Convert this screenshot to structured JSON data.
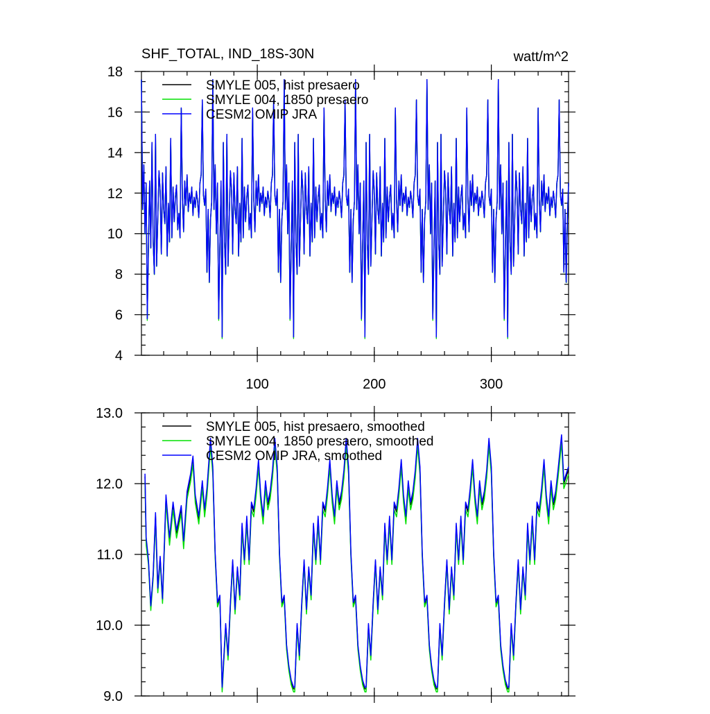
{
  "colors": {
    "hist": "#000000",
    "pre1850": "#00e000",
    "omip": "#0000ff"
  },
  "chart_data": [
    {
      "id": "top",
      "type": "line",
      "title": "SHF_TOTAL, IND_18S-30N",
      "units": "watt/m^2",
      "xlim": [
        1,
        366
      ],
      "ylim": [
        4,
        18
      ],
      "yticks": [
        4,
        6,
        8,
        10,
        12,
        14,
        16,
        18
      ],
      "yminor_step": 0.5,
      "xticks": [
        100,
        200,
        300
      ],
      "xminor_step": 20,
      "x_tick_labels_shown": true,
      "legend": [
        "SMYLE 005, hist presaero",
        "SMYLE 004, 1850 presaero",
        "CESM2 OMIP JRA"
      ],
      "series_names": [
        "SMYLE 005, hist presaero",
        "SMYLE 004, 1850 presaero",
        "CESM2 OMIP JRA"
      ],
      "base_pattern_period": 61,
      "base_pattern": [
        17.6,
        11.2,
        13.4,
        10.0,
        12.5,
        5.8,
        9.4,
        12.6,
        9.3,
        14.5,
        9.6,
        8.0,
        14.9,
        8.4,
        10.8,
        13.1,
        12.1,
        9.0,
        13.0,
        11.2,
        10.5,
        13.3,
        8.9,
        11.5,
        9.6,
        14.7,
        9.8,
        12.3,
        10.6,
        11.8,
        12.4,
        10.2,
        11.0,
        9.8,
        16.2,
        11.7,
        10.1,
        12.6,
        11.4,
        12.9,
        11.1,
        12.0,
        11.5,
        12.3,
        10.9,
        11.8,
        11.3,
        12.1,
        11.6,
        10.8,
        12.5,
        12.9,
        16.6,
        11.9,
        11.4,
        12.2,
        8.1,
        11.2,
        7.6,
        10.7,
        11.6
      ],
      "dips": [
        {
          "x": 70,
          "y": 4.9
        },
        {
          "x": 131,
          "y": 4.9
        },
        {
          "x": 192,
          "y": 4.9
        },
        {
          "x": 253,
          "y": 4.9
        },
        {
          "x": 314,
          "y": 4.9
        }
      ],
      "tail": {
        "x": 366,
        "y": 12.5
      }
    },
    {
      "id": "bottom",
      "type": "line",
      "title": "",
      "units": "",
      "xlim": [
        1,
        366
      ],
      "ylim": [
        9.0,
        13.0
      ],
      "yticks": [
        9.0,
        10.0,
        11.0,
        12.0,
        13.0
      ],
      "yminor_step": 0.2,
      "xticks": [
        100,
        200,
        300
      ],
      "xminor_step": 20,
      "x_tick_labels_shown": false,
      "legend": [
        "SMYLE 005, hist presaero, smoothed",
        "SMYLE 004, 1850 presaero, smoothed",
        "CESM2 OMIP JRA, smoothed"
      ],
      "series_names": [
        "SMYLE 005, hist presaero, smoothed",
        "SMYLE 004, 1850 presaero, smoothed",
        "CESM2 OMIP JRA, smoothed"
      ],
      "key_points": [
        {
          "x": 4,
          "y": 12.1
        },
        {
          "x": 5,
          "y": 11.2
        },
        {
          "x": 7,
          "y": 10.9
        },
        {
          "x": 9,
          "y": 10.25
        },
        {
          "x": 11,
          "y": 10.7
        },
        {
          "x": 13,
          "y": 11.55
        },
        {
          "x": 15,
          "y": 10.5
        },
        {
          "x": 17,
          "y": 10.95
        },
        {
          "x": 19,
          "y": 10.35
        },
        {
          "x": 22,
          "y": 11.8
        },
        {
          "x": 25,
          "y": 11.2
        },
        {
          "x": 28,
          "y": 11.7
        },
        {
          "x": 31,
          "y": 11.3
        },
        {
          "x": 35,
          "y": 11.65
        },
        {
          "x": 37,
          "y": 11.15
        },
        {
          "x": 40,
          "y": 11.85
        },
        {
          "x": 43,
          "y": 12.1
        },
        {
          "x": 45,
          "y": 12.35
        },
        {
          "x": 47,
          "y": 11.8
        },
        {
          "x": 50,
          "y": 11.5
        },
        {
          "x": 53,
          "y": 12.0
        },
        {
          "x": 55,
          "y": 11.6
        },
        {
          "x": 57,
          "y": 11.9
        },
        {
          "x": 60,
          "y": 12.6
        },
        {
          "x": 62,
          "y": 12.2
        },
        {
          "x": 64,
          "y": 11.0
        },
        {
          "x": 66,
          "y": 10.3
        },
        {
          "x": 68,
          "y": 10.4
        },
        {
          "x": 70,
          "y": 9.1
        }
      ],
      "cycle_period": 61,
      "cycle_start": 71,
      "cycle_points": [
        {
          "dx": 0,
          "y": 9.1
        },
        {
          "dx": 2,
          "y": 10.0
        },
        {
          "dx": 4,
          "y": 9.55
        },
        {
          "dx": 6,
          "y": 10.3
        },
        {
          "dx": 8,
          "y": 10.9
        },
        {
          "dx": 10,
          "y": 10.2
        },
        {
          "dx": 12,
          "y": 10.8
        },
        {
          "dx": 14,
          "y": 10.4
        },
        {
          "dx": 16,
          "y": 11.4
        },
        {
          "dx": 18,
          "y": 10.9
        },
        {
          "dx": 20,
          "y": 11.5
        },
        {
          "dx": 22,
          "y": 10.9
        },
        {
          "dx": 24,
          "y": 11.7
        },
        {
          "dx": 26,
          "y": 11.6
        },
        {
          "dx": 28,
          "y": 11.9
        },
        {
          "dx": 30,
          "y": 12.3
        },
        {
          "dx": 32,
          "y": 11.8
        },
        {
          "dx": 34,
          "y": 11.5
        },
        {
          "dx": 36,
          "y": 12.0
        },
        {
          "dx": 38,
          "y": 11.7
        },
        {
          "dx": 40,
          "y": 11.85
        },
        {
          "dx": 42,
          "y": 12.15
        },
        {
          "dx": 44,
          "y": 12.6
        },
        {
          "dx": 46,
          "y": 12.2
        },
        {
          "dx": 48,
          "y": 11.0
        },
        {
          "dx": 50,
          "y": 10.3
        },
        {
          "dx": 52,
          "y": 10.4
        },
        {
          "dx": 54,
          "y": 9.7
        },
        {
          "dx": 56,
          "y": 9.4
        },
        {
          "dx": 58,
          "y": 9.2
        },
        {
          "dx": 60,
          "y": 9.1
        }
      ],
      "end_points": [
        {
          "x": 360,
          "y": 12.65
        },
        {
          "x": 362,
          "y": 12.0
        },
        {
          "x": 366,
          "y": 12.2
        }
      ],
      "offsets": {
        "hist": 0.0,
        "pre1850": -0.07,
        "omip": 0.04
      }
    }
  ]
}
